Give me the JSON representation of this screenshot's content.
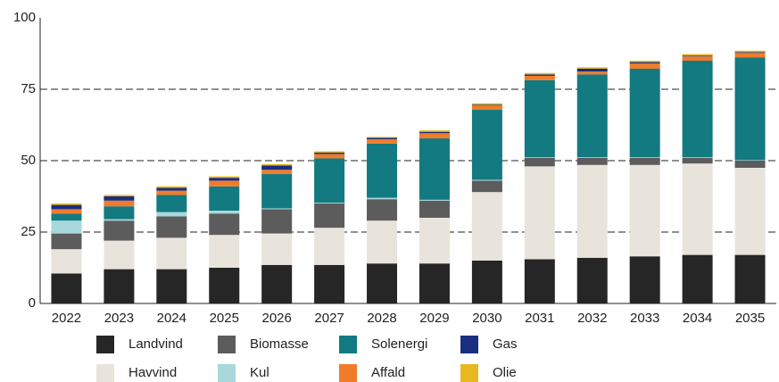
{
  "chart_data": {
    "type": "bar",
    "stacked": true,
    "categories": [
      "2022",
      "2023",
      "2024",
      "2025",
      "2026",
      "2027",
      "2028",
      "2029",
      "2030",
      "2031",
      "2032",
      "2033",
      "2034",
      "2035"
    ],
    "series": [
      {
        "name": "Landvind",
        "color": "#262626",
        "values": [
          10.5,
          12,
          12,
          12.5,
          13.5,
          13.5,
          14,
          14,
          15,
          15.5,
          16,
          16.5,
          17,
          17
        ]
      },
      {
        "name": "Havvind",
        "color": "#e8e4dc",
        "values": [
          8.5,
          10,
          11,
          11.5,
          11,
          13,
          15,
          16,
          24,
          32.5,
          32.5,
          32,
          32,
          30.5
        ]
      },
      {
        "name": "Biomasse",
        "color": "#5c5c5c",
        "values": [
          5.5,
          7,
          7.5,
          7.5,
          8.5,
          8.5,
          7.5,
          6,
          4,
          3,
          2.5,
          2.5,
          2,
          2.5
        ]
      },
      {
        "name": "Kul",
        "color": "#a8d8dc",
        "values": [
          4.5,
          0.5,
          1.5,
          1,
          0.3,
          0.3,
          0.5,
          0.3,
          0.3,
          0.2,
          0.2,
          0.2,
          0.2,
          0.2
        ]
      },
      {
        "name": "Solenergi",
        "color": "#127a80",
        "values": [
          2.5,
          4.5,
          6,
          8.5,
          12,
          15.5,
          19,
          21.5,
          24.5,
          27,
          29,
          31,
          33.8,
          36
        ]
      },
      {
        "name": "Affald",
        "color": "#f07c2a",
        "values": [
          1.5,
          2,
          1.5,
          2,
          1.5,
          1.5,
          1.5,
          1.8,
          1.5,
          1.5,
          1,
          1.8,
          1.5,
          1.5
        ]
      },
      {
        "name": "Gas",
        "color": "#1a2e80",
        "values": [
          1.5,
          1.5,
          1,
          1,
          1.5,
          0.5,
          0.5,
          0.5,
          0.3,
          0.5,
          1,
          0.5,
          0.3,
          0.3
        ]
      },
      {
        "name": "Olie",
        "color": "#e8b820",
        "values": [
          0.5,
          0.5,
          0.5,
          0.5,
          0.5,
          0.5,
          0.3,
          0.5,
          0.5,
          0.5,
          0.5,
          0.5,
          0.5,
          0.5
        ]
      }
    ],
    "ylim": [
      0,
      100
    ],
    "yticks": [
      0,
      25,
      50,
      75,
      100
    ],
    "grid": true
  }
}
